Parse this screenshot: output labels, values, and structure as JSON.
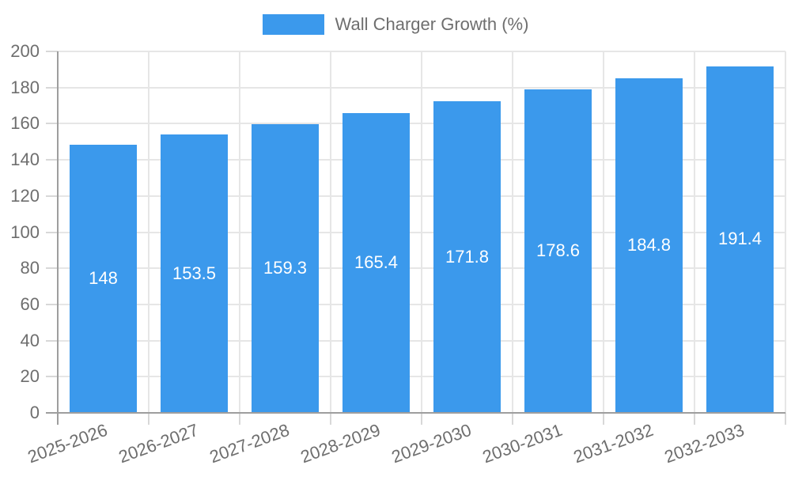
{
  "legend": {
    "label": "Wall Charger Growth (%)"
  },
  "chart_data": {
    "type": "bar",
    "title": "Wall Charger Growth (%)",
    "categories": [
      "2025-2026",
      "2026-2027",
      "2027-2028",
      "2028-2029",
      "2029-2030",
      "2030-2031",
      "2031-2032",
      "2032-2033"
    ],
    "values": [
      148,
      153.5,
      159.3,
      165.4,
      171.8,
      178.6,
      184.8,
      191.4
    ],
    "value_labels": [
      "148",
      "153.5",
      "159.3",
      "165.4",
      "171.8",
      "178.6",
      "184.8",
      "191.4"
    ],
    "y_ticks": [
      0,
      20,
      40,
      60,
      80,
      100,
      120,
      140,
      160,
      180,
      200
    ],
    "ylim": [
      0,
      200
    ],
    "xlabel": "",
    "ylabel": "",
    "legend_position": "top",
    "grid": true,
    "colors": {
      "bar": "#3b99ec",
      "grid": "#e6e6e6",
      "tick": "#d8d8d8",
      "axis": "#9e9e9e",
      "label_text": "#6e6e6e",
      "value_text": "#ffffff",
      "background": "#ffffff"
    }
  }
}
